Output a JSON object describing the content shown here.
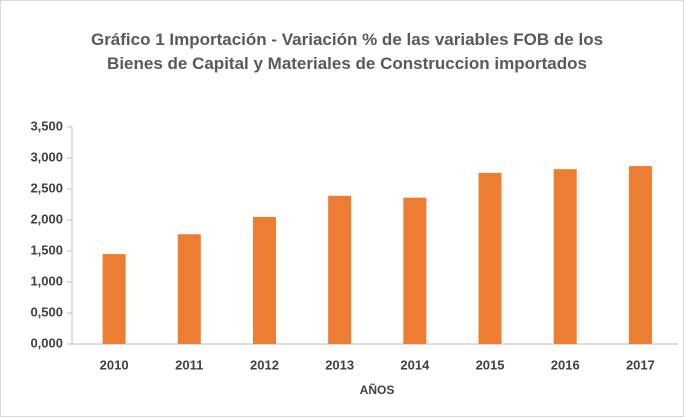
{
  "chart_data": {
    "type": "bar",
    "title": "Gráfico 1 Importación - Variación % de las variables FOB de los Bienes de Capital y Materiales de Construccion importados",
    "x_label": "AÑOS",
    "categories": [
      "2010",
      "2011",
      "2012",
      "2013",
      "2014",
      "2015",
      "2016",
      "2017"
    ],
    "values": [
      1.45,
      1.77,
      2.05,
      2.39,
      2.36,
      2.76,
      2.82,
      2.87
    ],
    "color": "#ed7d31",
    "ylim": [
      0,
      3.5
    ],
    "yticks": [
      {
        "value": 0,
        "label": "0,000"
      },
      {
        "value": 0.5,
        "label": "0,500"
      },
      {
        "value": 1,
        "label": "1,000"
      },
      {
        "value": 1.5,
        "label": "1,500"
      },
      {
        "value": 2,
        "label": "2,000"
      },
      {
        "value": 2.5,
        "label": "2,500"
      },
      {
        "value": 3,
        "label": "3,000"
      },
      {
        "value": 3.5,
        "label": "3,500"
      }
    ],
    "grid": false
  }
}
